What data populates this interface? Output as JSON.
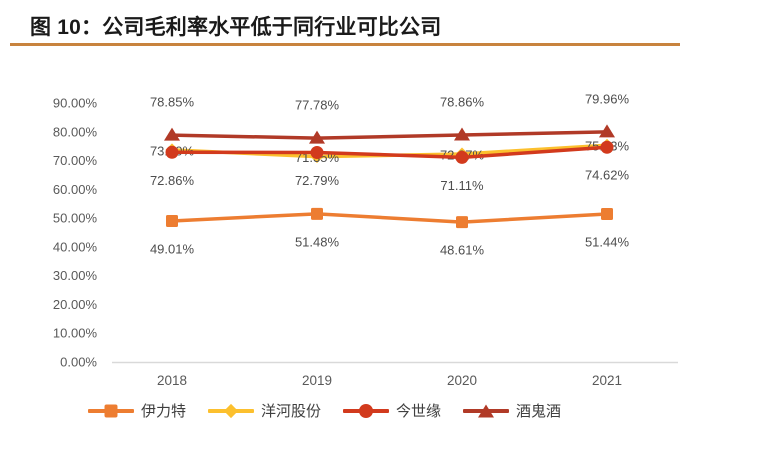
{
  "figure": {
    "title": "图 10：公司毛利率水平低于同行业可比公司"
  },
  "style": {
    "title_color": "#1A1A1A",
    "accent_rule_color": "#C8833E",
    "axis_line_color": "#D9D9D9",
    "axis_text_color": "#595959",
    "data_label_color": "#4D4D4D",
    "legend_text_color": "#3F3F3F",
    "background": "#FFFFFF"
  },
  "chart_data": {
    "type": "line",
    "title": "公司毛利率水平低于同行业可比公司",
    "categories": [
      "2018",
      "2019",
      "2020",
      "2021"
    ],
    "series": [
      {
        "name": "伊力特",
        "values": [
          49.01,
          51.48,
          48.61,
          51.44
        ],
        "color": "#ED7D31",
        "marker": "square",
        "label_dy": 28
      },
      {
        "name": "洋河股份",
        "values": [
          73.7,
          71.35,
          72.27,
          75.33
        ],
        "color": "#FCC02E",
        "marker": "diamond",
        "label_dy": 1
      },
      {
        "name": "今世缘",
        "values": [
          72.86,
          72.79,
          71.11,
          74.62
        ],
        "color": "#D23A1D",
        "marker": "circle",
        "label_dy": 28
      },
      {
        "name": "酒鬼酒",
        "values": [
          78.85,
          77.78,
          78.86,
          79.96
        ],
        "color": "#B13A27",
        "marker": "triangle",
        "label_dy": -33
      }
    ],
    "y_axis": {
      "min": 0,
      "max": 90,
      "step": 10,
      "tick_decimals": 2,
      "tick_suffix": "%"
    },
    "ylim": [
      0,
      90
    ],
    "data_label_decimals": 2,
    "data_label_suffix": "%",
    "grid": false,
    "legend_position": "bottom"
  }
}
